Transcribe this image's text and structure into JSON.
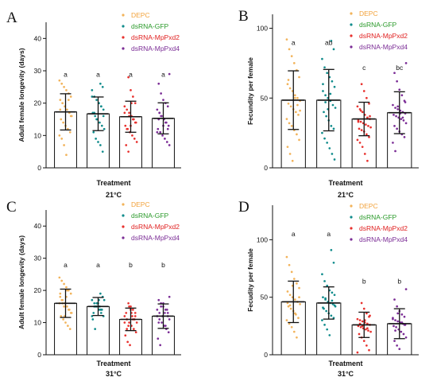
{
  "colors": {
    "DEPC": "#f2b35a",
    "dsRNA-GFP": "#118c8c",
    "dsRNA-MpPxd2": "#e8312e",
    "dsRNA-MpPxd4": "#7b2d96",
    "legend_text": [
      "#f2a23a",
      "#2a9a2a",
      "#e02020",
      "#7b2d96"
    ]
  },
  "chart_data": [
    {
      "panel": "A",
      "type": "bar",
      "categories": [
        "DEPC",
        "dsRNA-GFP",
        "dsRNA-MpPxd2",
        "dsRNA-MpPxd4"
      ],
      "values": [
        17.3,
        16.7,
        15.8,
        15.3
      ],
      "errors": [
        5.6,
        5.2,
        4.8,
        4.8
      ],
      "significance": [
        "a",
        "a",
        "a",
        "a"
      ],
      "points": [
        [
          27,
          26,
          25,
          24,
          23,
          22,
          21,
          20,
          19,
          18,
          17,
          16,
          15,
          14,
          13,
          12,
          11,
          10,
          9,
          7,
          4,
          21,
          16,
          18,
          20
        ],
        [
          26,
          25,
          24,
          22,
          21,
          20,
          19,
          18,
          17,
          16,
          15,
          14,
          13,
          12,
          11,
          9,
          8,
          7,
          5,
          22,
          17,
          15,
          20,
          19,
          16
        ],
        [
          28,
          24,
          22,
          20,
          19,
          18,
          17,
          16,
          15,
          14,
          13,
          12,
          11,
          10,
          9,
          8,
          7,
          5,
          13,
          15,
          14,
          17,
          12,
          16,
          20
        ],
        [
          29,
          26,
          23,
          21,
          20,
          19,
          18,
          17,
          16,
          15,
          14,
          13,
          12,
          11,
          10,
          9,
          8,
          7,
          15,
          16,
          13,
          14,
          12,
          11,
          17
        ]
      ],
      "ylabel": "Adult female longevity (days)",
      "xlabel": "Treatment",
      "temperature": "21°C",
      "ylim": [
        0,
        45
      ],
      "yticks": [
        0,
        10,
        20,
        30,
        40
      ],
      "legend": [
        "DEPC",
        "dsRNA-GFP",
        "dsRNA-MpPxd2",
        "dsRNA-MpPxd4"
      ]
    },
    {
      "panel": "B",
      "type": "bar",
      "categories": [
        "DEPC",
        "dsRNA-GFP",
        "dsRNA-MpPxd2",
        "dsRNA-MpPxd4"
      ],
      "values": [
        48.5,
        48.5,
        35,
        39.5
      ],
      "errors": [
        21,
        22,
        12,
        15
      ],
      "significance": [
        "a",
        "ab",
        "c",
        "bc"
      ],
      "points": [
        [
          92,
          85,
          80,
          75,
          70,
          65,
          60,
          57,
          55,
          52,
          50,
          48,
          46,
          44,
          42,
          40,
          38,
          35,
          32,
          30,
          27,
          24,
          20,
          15,
          10,
          5,
          50,
          45,
          41,
          63
        ],
        [
          91,
          85,
          78,
          72,
          68,
          65,
          62,
          58,
          55,
          52,
          50,
          48,
          45,
          43,
          40,
          37,
          34,
          30,
          28,
          25,
          21,
          18,
          14,
          10,
          6,
          60,
          47,
          42,
          53
        ],
        [
          60,
          55,
          50,
          46,
          44,
          42,
          40,
          38,
          36,
          35,
          34,
          33,
          32,
          31,
          30,
          29,
          28,
          27,
          26,
          24,
          22,
          20,
          18,
          15,
          10,
          5,
          37,
          33,
          41
        ],
        [
          75,
          68,
          62,
          56,
          52,
          48,
          45,
          43,
          42,
          41,
          40,
          39,
          38,
          37,
          36,
          35,
          34,
          32,
          30,
          28,
          26,
          24,
          22,
          18,
          12,
          44,
          39,
          36,
          47
        ]
      ],
      "ylabel": "Fecundity per female",
      "xlabel": "Treatment",
      "temperature": "21°C",
      "ylim": [
        0,
        110
      ],
      "yticks": [
        0,
        50,
        100
      ],
      "legend": [
        "DEPC",
        "dsRNA-GFP",
        "dsRNA-MpPxd2",
        "dsRNA-MpPxd4"
      ]
    },
    {
      "panel": "C",
      "type": "bar",
      "categories": [
        "DEPC",
        "dsRNA-GFP",
        "dsRNA-MpPxd2",
        "dsRNA-MpPxd4"
      ],
      "values": [
        16,
        15,
        11,
        12
      ],
      "errors": [
        4.4,
        2.8,
        3.5,
        3.8
      ],
      "significance": [
        "a",
        "a",
        "b",
        "b"
      ],
      "points": [
        [
          24,
          23,
          22,
          21,
          20,
          19,
          18,
          17,
          16,
          15,
          14,
          13,
          12,
          11,
          10,
          9,
          8,
          16,
          17,
          15,
          18,
          14,
          13,
          19,
          16,
          12,
          20
        ],
        [
          19,
          18,
          17,
          16,
          15,
          14,
          13,
          12,
          11,
          8,
          16,
          15,
          14,
          17,
          13,
          15,
          16,
          14,
          18,
          12,
          15,
          16,
          17,
          14
        ],
        [
          16,
          15,
          14,
          13,
          12,
          11,
          10,
          9,
          8,
          7,
          6,
          4,
          3,
          12,
          11,
          10,
          13,
          9,
          14,
          11,
          12,
          10,
          8,
          15,
          13
        ],
        [
          18,
          17,
          16,
          15,
          14,
          13,
          12,
          11,
          10,
          9,
          8,
          7,
          5,
          3,
          12,
          13,
          14,
          11,
          10,
          15,
          16,
          9,
          12,
          14,
          13
        ]
      ],
      "ylabel": "Adult female longevity (days)",
      "xlabel": "Treatment",
      "temperature": "31°C",
      "ylim": [
        0,
        45
      ],
      "yticks": [
        0,
        10,
        20,
        30,
        40
      ],
      "legend": [
        "DEPC",
        "dsRNA-GFP",
        "dsRNA-MpPxd2",
        "dsRNA-MpPxd4"
      ]
    },
    {
      "panel": "D",
      "type": "bar",
      "categories": [
        "DEPC",
        "dsRNA-GFP",
        "dsRNA-MpPxd2",
        "dsRNA-MpPxd4"
      ],
      "values": [
        46,
        45,
        26,
        27
      ],
      "errors": [
        18,
        14,
        11,
        13
      ],
      "significance": [
        "a",
        "a",
        "b",
        "b"
      ],
      "points": [
        [
          85,
          78,
          72,
          66,
          62,
          58,
          55,
          52,
          50,
          48,
          46,
          44,
          42,
          40,
          38,
          35,
          32,
          30,
          27,
          24,
          20,
          15,
          50,
          45,
          43,
          60,
          36
        ],
        [
          91,
          80,
          70,
          64,
          60,
          56,
          54,
          52,
          50,
          48,
          46,
          45,
          44,
          42,
          40,
          38,
          36,
          34,
          32,
          30,
          26,
          22,
          17,
          47,
          43,
          41,
          49
        ],
        [
          45,
          40,
          36,
          33,
          31,
          30,
          29,
          28,
          27,
          26,
          25,
          24,
          23,
          22,
          21,
          20,
          18,
          15,
          12,
          8,
          4,
          2,
          27,
          25,
          30,
          23,
          34
        ],
        [
          57,
          48,
          42,
          38,
          35,
          33,
          31,
          30,
          29,
          28,
          27,
          26,
          25,
          24,
          22,
          20,
          18,
          15,
          12,
          8,
          5,
          28,
          26,
          32,
          21,
          36
        ]
      ],
      "ylabel": "Fecudity per female",
      "xlabel": "Treatment",
      "temperature": "31°C",
      "ylim": [
        0,
        130
      ],
      "yticks": [
        0,
        50,
        100
      ],
      "legend": [
        "DEPC",
        "dsRNA-GFP",
        "dsRNA-MpPxd2",
        "dsRNA-MpPxd4"
      ]
    }
  ]
}
